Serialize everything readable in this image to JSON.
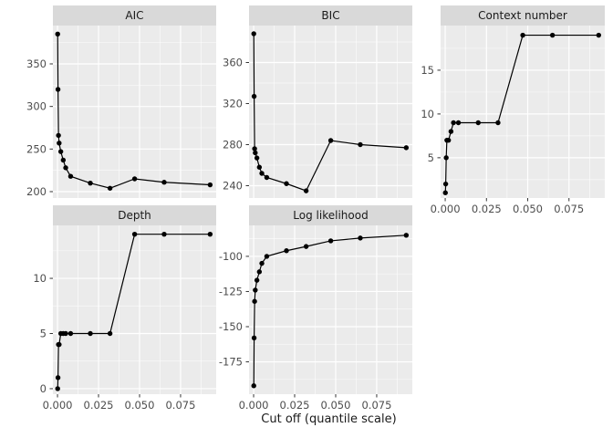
{
  "chart_data": {
    "type": "line",
    "description": "Faceted ggplot-style line+point chart of model metrics vs quantile cut off",
    "xlabel": "Cut off (quantile scale)",
    "legend": "none",
    "grid": true,
    "point_color": "#000000",
    "line_color": "#000000",
    "panel_bg": "#ebebeb",
    "strip_bg": "#d9d9d9",
    "grid_color": "#ffffff",
    "tick_color": "#333333",
    "axis_text_color": "#4d4d4d",
    "x": [
      0.0001,
      0.0003,
      0.0006,
      0.001,
      0.002,
      0.0035,
      0.005,
      0.008,
      0.02,
      0.032,
      0.047,
      0.065,
      0.093
    ],
    "xlim": [
      -0.0028,
      0.0967
    ],
    "x_ticks": [
      0,
      0.025,
      0.05,
      0.075
    ],
    "x_tick_labels": [
      "0.000",
      "0.025",
      "0.050",
      "0.075"
    ],
    "facets": [
      {
        "title": "AIC",
        "values": [
          385,
          320,
          266,
          257,
          247,
          237,
          228,
          218,
          210,
          204,
          215,
          211,
          208
        ],
        "y_ticks": [
          200,
          250,
          300,
          350
        ],
        "ylim": [
          192.5,
          395
        ],
        "show_x_axis": false
      },
      {
        "title": "BIC",
        "values": [
          388,
          327,
          276,
          272,
          267,
          258,
          252,
          248,
          242,
          235,
          284,
          280,
          277
        ],
        "y_ticks": [
          240,
          280,
          320,
          360
        ],
        "ylim": [
          228,
          396
        ],
        "show_x_axis": false
      },
      {
        "title": "Context number",
        "values": [
          1,
          2,
          5,
          7,
          7,
          8,
          9,
          9,
          9,
          9,
          19,
          19,
          19
        ],
        "y_ticks": [
          5,
          10,
          15
        ],
        "ylim": [
          0.4,
          20.1
        ],
        "show_x_axis": true
      },
      {
        "title": "Depth",
        "values": [
          0,
          1,
          4,
          4,
          5,
          5,
          5,
          5,
          5,
          5,
          14,
          14,
          14
        ],
        "y_ticks": [
          0,
          5,
          10
        ],
        "ylim": [
          -0.5,
          14.8
        ],
        "show_x_axis": true
      },
      {
        "title": "Log likelihood",
        "values": [
          -192,
          -158,
          -132,
          -124,
          -117,
          -111,
          -105,
          -100,
          -96,
          -93,
          -89,
          -87,
          -85
        ],
        "y_ticks": [
          -175,
          -150,
          -125,
          -100
        ],
        "ylim": [
          -198,
          -78
        ],
        "show_x_axis": true
      }
    ]
  }
}
